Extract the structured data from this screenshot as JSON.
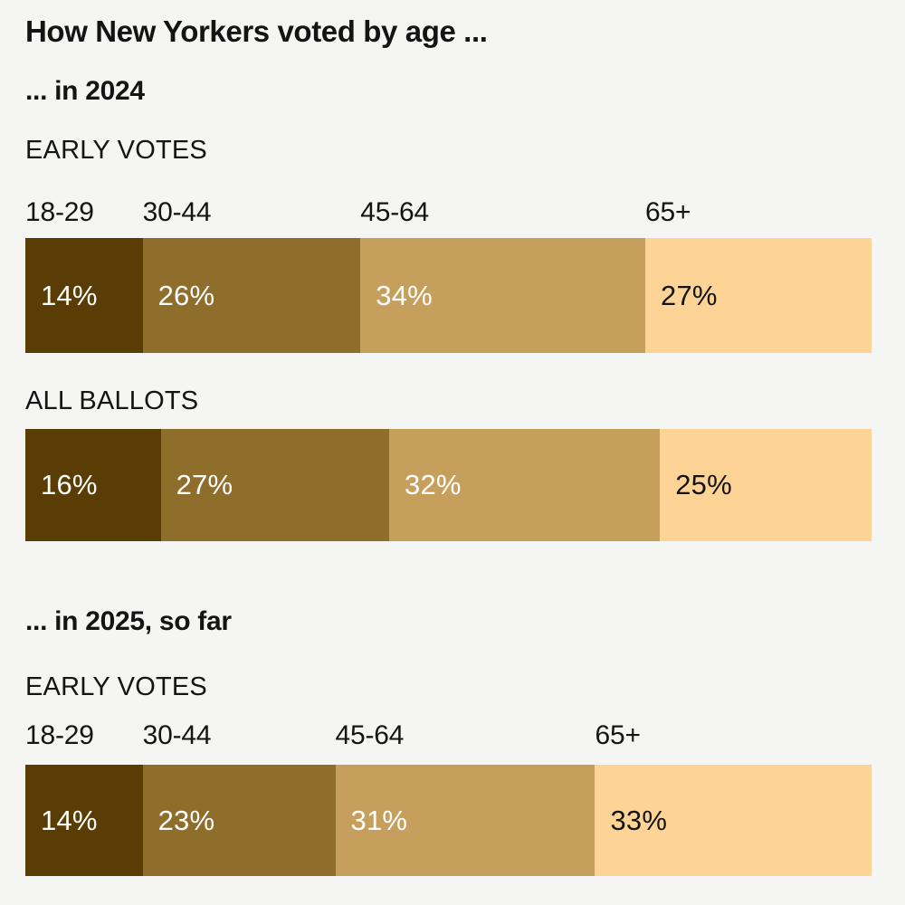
{
  "title": "How New Yorkers voted by age ...",
  "colors": {
    "background": "#f5f5f4",
    "text": "#141414",
    "palette": [
      "#5a3d05",
      "#8f6d2b",
      "#c79f5c",
      "#fed496"
    ],
    "value_text": [
      "#ffffff",
      "#ffffff",
      "#ffffff",
      "#141414"
    ]
  },
  "chart_data": {
    "type": "bar",
    "variant": "horizontal-stacked-100percent",
    "title": "How New Yorkers voted by age ...",
    "categories": [
      "18-29",
      "30-44",
      "45-64",
      "65+"
    ],
    "unit": "%",
    "grid": false,
    "legend": "none",
    "sections": [
      {
        "heading": "... in 2024",
        "bars": [
          {
            "label": "EARLY VOTES",
            "values": [
              14,
              26,
              34,
              27
            ],
            "show_categories": true
          },
          {
            "label": "ALL BALLOTS",
            "values": [
              16,
              27,
              32,
              25
            ],
            "show_categories": false
          }
        ]
      },
      {
        "heading": "... in 2025, so far",
        "bars": [
          {
            "label": "EARLY VOTES",
            "values": [
              14,
              23,
              31,
              33
            ],
            "show_categories": true
          }
        ]
      }
    ]
  }
}
